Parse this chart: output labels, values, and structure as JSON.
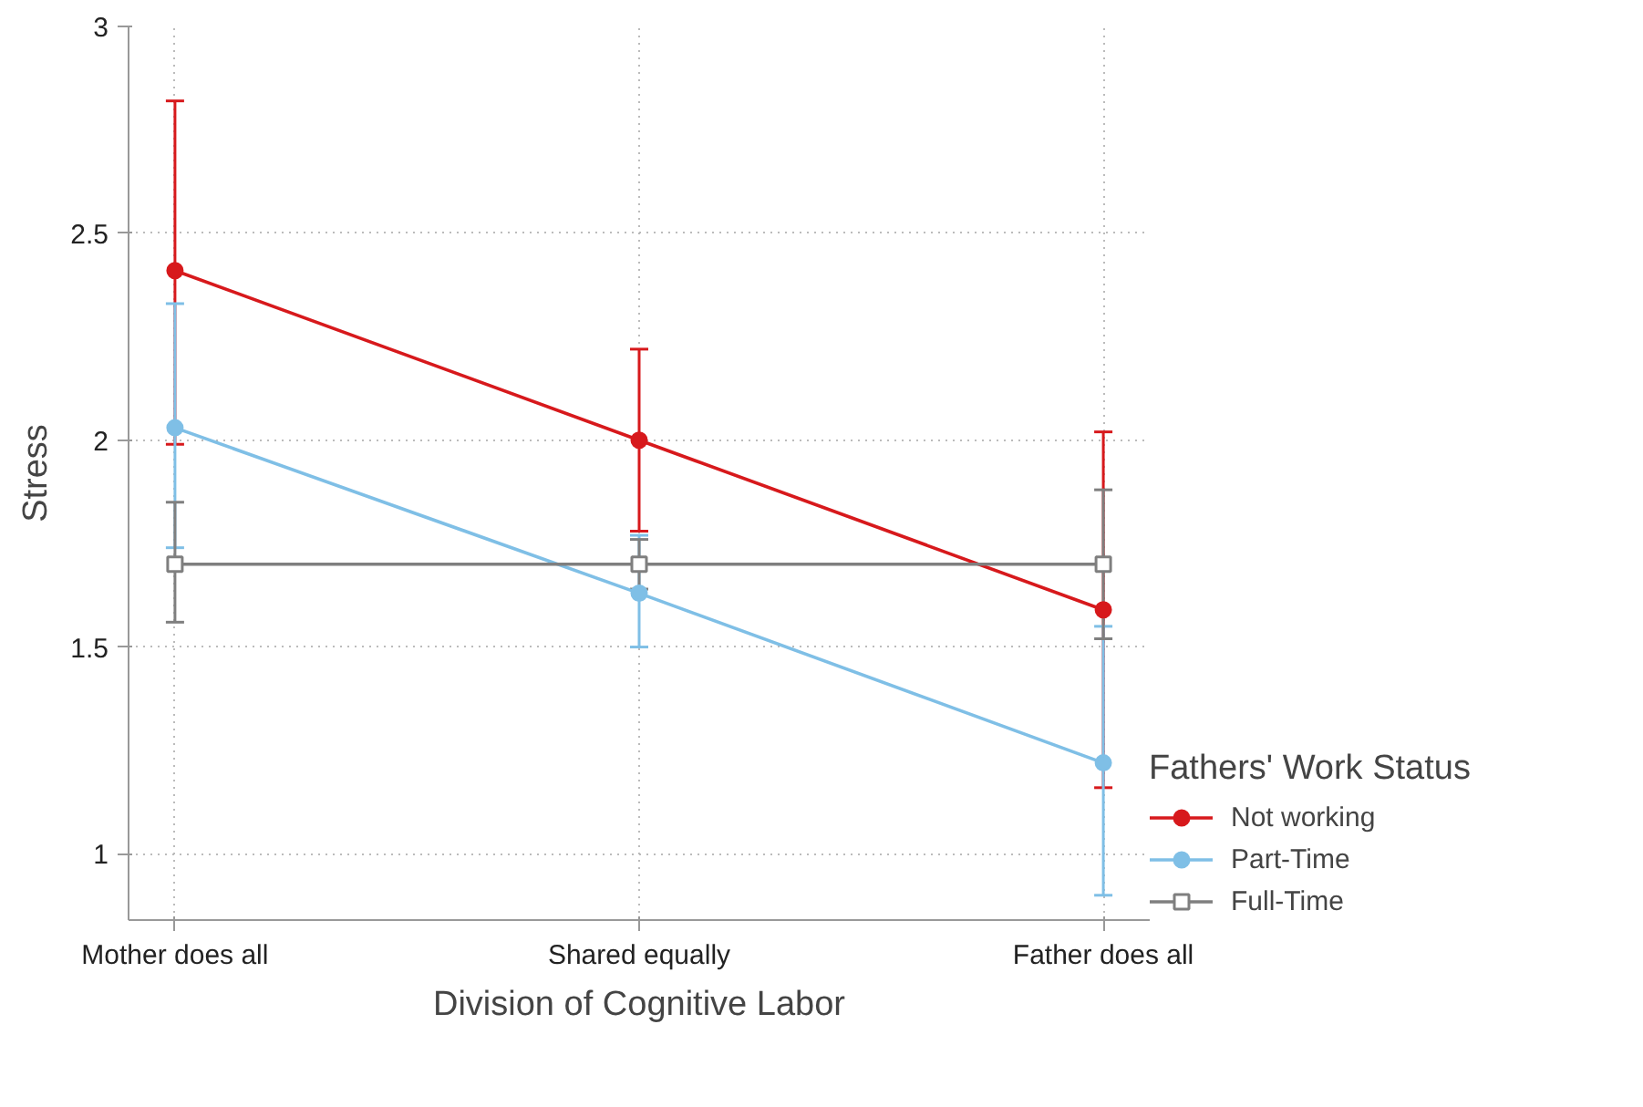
{
  "chart_data": {
    "type": "line",
    "xlabel": "Division of Cognitive Labor",
    "ylabel": "Stress",
    "legend_title": "Fathers' Work Status",
    "categories": [
      "Mother does all",
      "Shared equally",
      "Father does all"
    ],
    "ylim": [
      0.84,
      3
    ],
    "yticks": [
      1,
      1.5,
      2,
      2.5,
      3
    ],
    "grid": true,
    "legend": "right",
    "marker": "circle",
    "series": [
      {
        "name": "Not working",
        "color": "#d7191c",
        "values": [
          2.41,
          2.0,
          1.59
        ],
        "errors": [
          [
            1.99,
            2.82
          ],
          [
            1.78,
            2.22
          ],
          [
            1.16,
            2.02
          ]
        ]
      },
      {
        "name": "Part-Time",
        "color": "#7fbfe6",
        "values": [
          2.03,
          1.63,
          1.22
        ],
        "errors": [
          [
            1.74,
            2.33
          ],
          [
            1.5,
            1.77
          ],
          [
            0.9,
            1.55
          ]
        ]
      },
      {
        "name": "Full-Time",
        "color": "#7f7f7f",
        "marker": "square",
        "values": [
          1.7,
          1.7,
          1.7
        ],
        "errors": [
          [
            1.56,
            1.85
          ],
          [
            1.64,
            1.76
          ],
          [
            1.52,
            1.88
          ]
        ]
      }
    ]
  }
}
